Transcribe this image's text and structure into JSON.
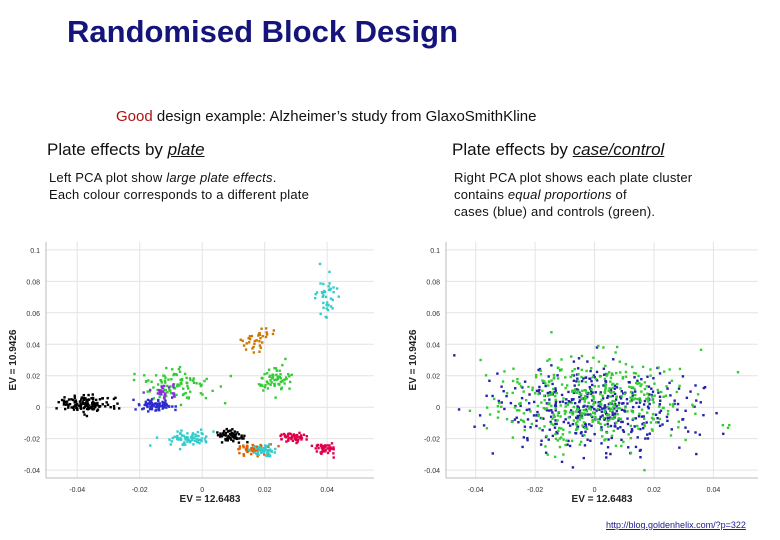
{
  "slide": {
    "title": "Randomised Block Design",
    "subtitle_good": "Good",
    "subtitle_rest": " design example: Alzheimer’s study from GlaxoSmithKline",
    "link": "http://blog.goldenhelix.com/?p=322"
  },
  "left": {
    "heading_prefix": "Plate effects by ",
    "heading_emph": "plate",
    "desc_line1_a": "Left PCA plot show ",
    "desc_line1_em": "large plate effects",
    "desc_line1_b": ".",
    "desc_line2": "Each colour corresponds to a different plate"
  },
  "right": {
    "heading_prefix": "Plate effects by ",
    "heading_emph": "case/control",
    "desc_line1": "Right PCA plot shows each plate cluster",
    "desc_line2_a": "contains ",
    "desc_line2_em": "equal proportions",
    "desc_line2_b": " of",
    "desc_line3": "cases (blue) and controls (green)."
  },
  "chart_data": [
    {
      "type": "scatter",
      "xlabel": "EV = 12.6483",
      "ylabel": "EV = 10.9426",
      "xticks": [
        "-0.04",
        "-0.02",
        "0",
        "0.02",
        "0.04"
      ],
      "yticks": [
        "-0.04",
        "-0.02",
        "0",
        "0.02",
        "0.04",
        "0.06",
        "0.08",
        "0.1"
      ],
      "xlim": [
        -0.05,
        0.055
      ],
      "ylim": [
        -0.045,
        0.105
      ],
      "grid": true,
      "colors": [
        "#000000",
        "#2b2bd0",
        "#33cc33",
        "#33cccc",
        "#e06000",
        "#e0004a",
        "#cc7700",
        "#8a2be2"
      ],
      "series": [
        {
          "color": "#000000",
          "center": [
            -0.037,
            0.002
          ],
          "spread": [
            0.008,
            0.004
          ],
          "n": 120
        },
        {
          "color": "#2b2bd0",
          "center": [
            -0.015,
            0.001
          ],
          "spread": [
            0.005,
            0.003
          ],
          "n": 80
        },
        {
          "color": "#33cc33",
          "center": [
            -0.008,
            0.014
          ],
          "spread": [
            0.01,
            0.01
          ],
          "n": 100
        },
        {
          "color": "#33cccc",
          "center": [
            -0.005,
            -0.02
          ],
          "spread": [
            0.006,
            0.004
          ],
          "n": 70
        },
        {
          "color": "#000000",
          "center": [
            0.009,
            -0.018
          ],
          "spread": [
            0.004,
            0.003
          ],
          "n": 60
        },
        {
          "color": "#e06000",
          "center": [
            0.016,
            -0.027
          ],
          "spread": [
            0.004,
            0.003
          ],
          "n": 50
        },
        {
          "color": "#33cccc",
          "center": [
            0.02,
            -0.028
          ],
          "spread": [
            0.004,
            0.003
          ],
          "n": 45
        },
        {
          "color": "#e0004a",
          "center": [
            0.029,
            -0.019
          ],
          "spread": [
            0.003,
            0.003
          ],
          "n": 50
        },
        {
          "color": "#e0004a",
          "center": [
            0.039,
            -0.026
          ],
          "spread": [
            0.003,
            0.003
          ],
          "n": 45
        },
        {
          "color": "#33cc33",
          "center": [
            0.023,
            0.017
          ],
          "spread": [
            0.005,
            0.007
          ],
          "n": 60
        },
        {
          "color": "#33cccc",
          "center": [
            0.04,
            0.071
          ],
          "spread": [
            0.003,
            0.01
          ],
          "n": 40
        },
        {
          "color": "#cc7700",
          "center": [
            0.018,
            0.044
          ],
          "spread": [
            0.004,
            0.006
          ],
          "n": 35
        },
        {
          "color": "#8a2be2",
          "center": [
            -0.013,
            0.01
          ],
          "spread": [
            0.004,
            0.004
          ],
          "n": 25
        }
      ]
    },
    {
      "type": "scatter",
      "xlabel": "EV = 12.6483",
      "ylabel": "EV = 10.9426",
      "xticks": [
        "-0.04",
        "-0.02",
        "0",
        "0.02",
        "0.04"
      ],
      "yticks": [
        "-0.04",
        "-0.02",
        "0",
        "0.02",
        "0.04",
        "0.06",
        "0.08",
        "0.1"
      ],
      "xlim": [
        -0.05,
        0.055
      ],
      "ylim": [
        -0.045,
        0.105
      ],
      "grid": true,
      "colors": [
        "#2222aa",
        "#33cc33"
      ],
      "series": [
        {
          "name": "cases",
          "color": "#2222aa",
          "center": [
            0.0,
            0.0
          ],
          "spread": [
            0.025,
            0.022
          ],
          "n": 420
        },
        {
          "name": "controls",
          "color": "#33cc33",
          "center": [
            0.0,
            0.003
          ],
          "spread": [
            0.025,
            0.022
          ],
          "n": 420
        }
      ]
    }
  ]
}
